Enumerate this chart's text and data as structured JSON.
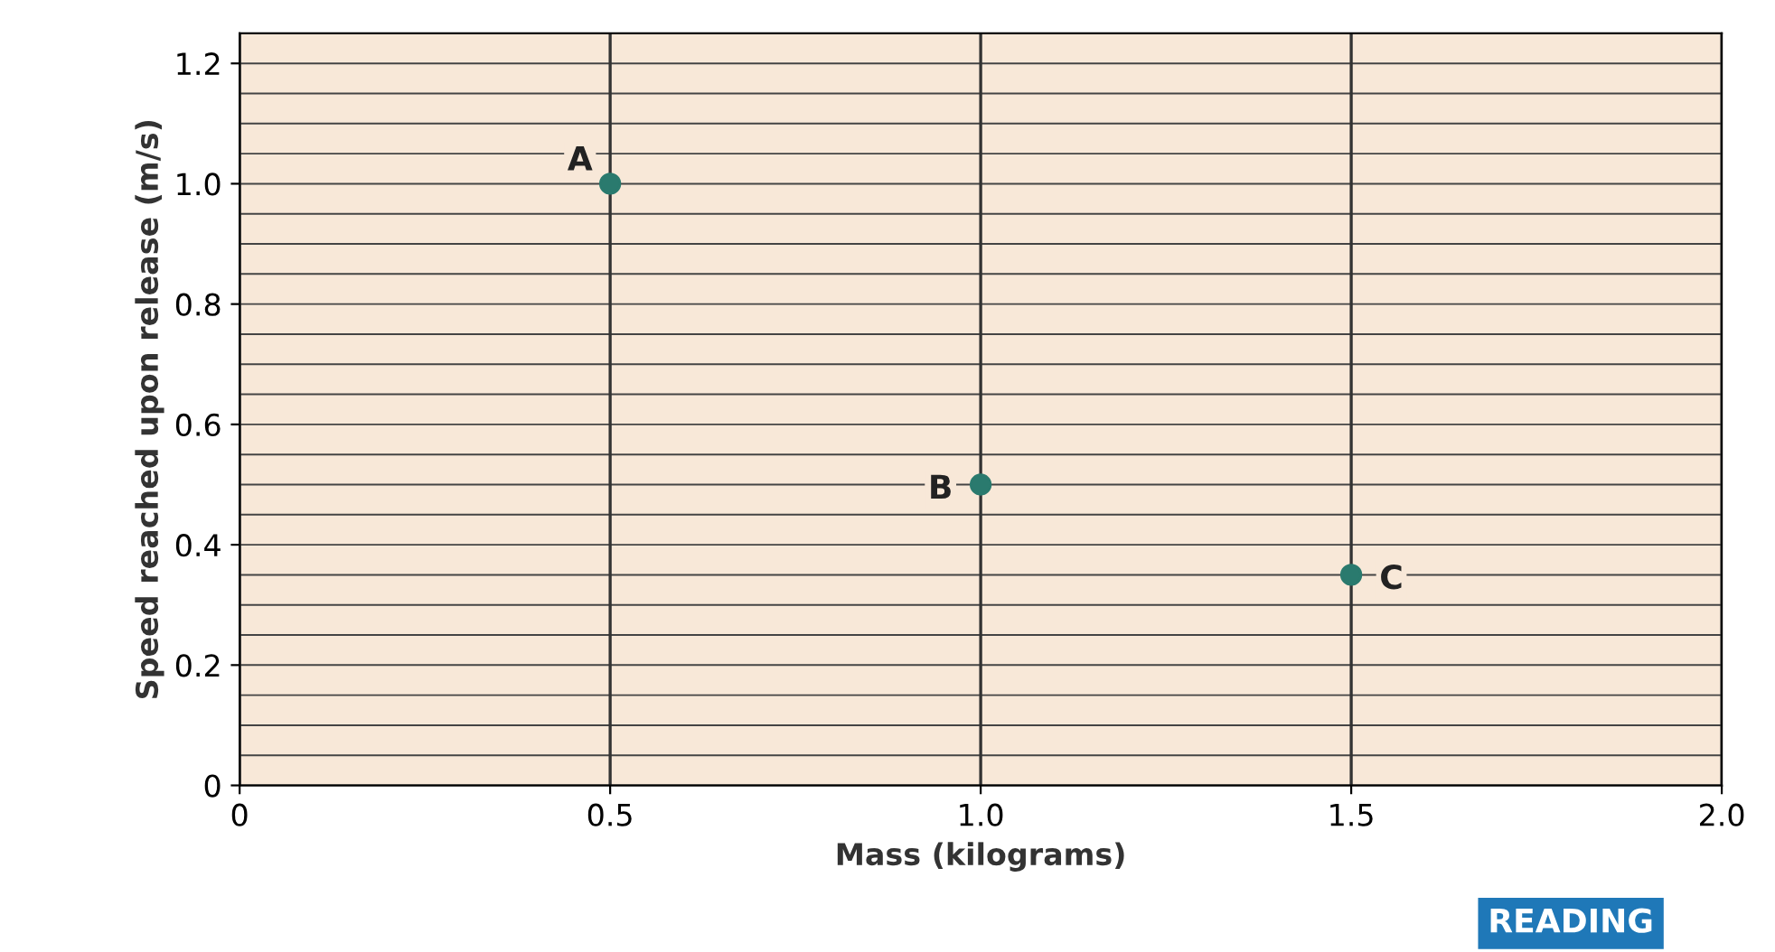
{
  "chart_data": {
    "type": "scatter",
    "xlabel": "Mass (kilograms)",
    "ylabel": "Speed reached upon release (m/s)",
    "x": [
      0.5,
      1.0,
      1.5
    ],
    "values": [
      1.0,
      0.5,
      0.35
    ],
    "color": "#2a7a6e",
    "marker": "circle",
    "xlim": [
      0,
      2.0
    ],
    "xticks": [
      0,
      0.5,
      {
        "value": 1.0,
        "label": "1.0"
      },
      1.5,
      {
        "value": 2.0,
        "label": "2.0"
      }
    ],
    "ylim": [
      0,
      1.25
    ],
    "yticks": [
      0,
      0.2,
      0.4,
      0.6,
      0.8,
      {
        "value": 1.0,
        "label": "1.0"
      },
      1.2
    ],
    "grid": true,
    "annotations": [
      {
        "text": "A",
        "x": 0.5,
        "y": 1.0
      },
      {
        "text": "B",
        "x": 1.0,
        "y": 0.5
      },
      {
        "text": "C",
        "x": 1.5,
        "y": 0.35
      },
      "READING"
    ]
  }
}
